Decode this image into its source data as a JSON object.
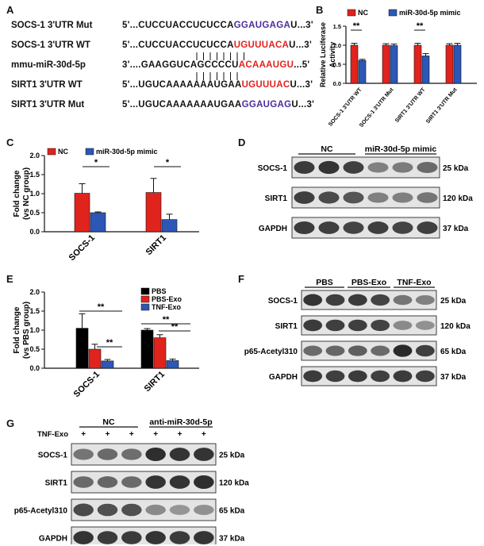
{
  "panels": {
    "A": "A",
    "B": "B",
    "C": "C",
    "D": "D",
    "E": "E",
    "F": "F",
    "G": "G"
  },
  "panel_a": {
    "rows": [
      {
        "label": "SOCS-1 3'UTR Mut",
        "pre": "5'...CUCCUACCUCUCCA",
        "hl": "GGAUGAGA",
        "post": "U...3'",
        "hl_color": "blue"
      },
      {
        "label": "SOCS-1 3'UTR WT",
        "pre": "5'...CUCCUACCUCUCCA",
        "hl": "UGUUUACA",
        "post": "U...3'",
        "hl_color": "red"
      },
      {
        "label": "mmu-miR-30d-5p",
        "pre": "3'....GAAGGUCAGCCCCU",
        "hl": "ACAAAUGU",
        "post": "...5'",
        "hl_color": "red"
      },
      {
        "label": "SIRT1 3'UTR WT",
        "pre": "5'...UGUCAAAAAAAUGAA",
        "hl": "UGUUUAC",
        "post": "U...3'",
        "hl_color": "red"
      },
      {
        "label": "SIRT1 3'UTR Mut",
        "pre": "5'...UGUCAAAAAAAUGAA",
        "hl": "GGAUGAG",
        "post": "U...3'",
        "hl_color": "blue"
      }
    ]
  },
  "colors": {
    "black": "#000000",
    "red": "#e1231e",
    "blue": "#2c57b7"
  },
  "chart_data": [
    {
      "panel": "B",
      "type": "bar",
      "categories": [
        "SOCS-1 3'UTR WT",
        "SOCS-1 3'UTR Mut",
        "SIRT1 3'UTR WT",
        "SIRT1 3'UTR Mut"
      ],
      "series": [
        {
          "name": "NC",
          "values": [
            1.0,
            1.0,
            1.0,
            1.0
          ],
          "errors": [
            0.05,
            0.04,
            0.05,
            0.04
          ]
        },
        {
          "name": "miR-30d-5p mimic",
          "values": [
            0.6,
            0.99,
            0.72,
            1.0
          ],
          "errors": [
            0.03,
            0.04,
            0.06,
            0.05
          ]
        }
      ],
      "ylabel": "Relative Luciferase Activity",
      "ylim": [
        0,
        1.5
      ],
      "yticks": [
        "0.0",
        "0.5",
        "1.0",
        "1.5"
      ],
      "sig": [
        "**",
        "**"
      ]
    },
    {
      "panel": "C",
      "type": "bar",
      "categories": [
        "SOCS-1",
        "SIRT1"
      ],
      "series": [
        {
          "name": "NC",
          "values": [
            1.01,
            1.03
          ],
          "errors": [
            0.25,
            0.37
          ]
        },
        {
          "name": "miR-30d-5p mimic",
          "values": [
            0.5,
            0.32
          ],
          "errors": [
            0.02,
            0.14
          ]
        }
      ],
      "ylabel": "Fold change (vs NC group)",
      "ylim": [
        0,
        2.0
      ],
      "yticks": [
        "0.0",
        "0.5",
        "1.0",
        "1.5",
        "2.0"
      ],
      "sig": [
        "*",
        "*"
      ]
    },
    {
      "panel": "E",
      "type": "bar",
      "categories": [
        "SOCS-1",
        "SIRT1"
      ],
      "series": [
        {
          "name": "PBS",
          "values": [
            1.05,
            1.0
          ],
          "errors": [
            0.38,
            0.04
          ]
        },
        {
          "name": "PBS-Exo",
          "values": [
            0.5,
            0.8
          ],
          "errors": [
            0.13,
            0.08
          ]
        },
        {
          "name": "TNF-Exo",
          "values": [
            0.19,
            0.2
          ],
          "errors": [
            0.04,
            0.04
          ]
        }
      ],
      "ylabel": "Fold change (vs PBS group)",
      "ylim": [
        0,
        2.0
      ],
      "yticks": [
        "0.0",
        "0.5",
        "1.0",
        "1.5",
        "2.0"
      ],
      "sig": [
        "**",
        "**",
        "**",
        "**"
      ]
    }
  ],
  "blot_d": {
    "groups": [
      "NC",
      "miR-30d-5p mimic"
    ],
    "rows": [
      {
        "protein": "SOCS-1",
        "kda": "25 kDa",
        "levels": [
          0.82,
          0.85,
          0.8,
          0.5,
          0.52,
          0.6
        ]
      },
      {
        "protein": "SIRT1",
        "kda": "120 kDa",
        "levels": [
          0.8,
          0.75,
          0.7,
          0.5,
          0.5,
          0.55
        ]
      },
      {
        "protein": "GAPDH",
        "kda": "37 kDa",
        "levels": [
          0.82,
          0.8,
          0.78,
          0.8,
          0.78,
          0.8
        ]
      }
    ]
  },
  "blot_f": {
    "groups": [
      "PBS",
      "PBS-Exo",
      "TNF-Exo"
    ],
    "rows": [
      {
        "protein": "SOCS-1",
        "kda": "25 kDa",
        "levels": [
          0.85,
          0.8,
          0.82,
          0.78,
          0.55,
          0.5
        ]
      },
      {
        "protein": "SIRT1",
        "kda": "120 kDa",
        "levels": [
          0.82,
          0.8,
          0.8,
          0.78,
          0.45,
          0.42
        ]
      },
      {
        "protein": "p65-Acetyl310",
        "kda": "65 kDa",
        "levels": [
          0.6,
          0.62,
          0.65,
          0.6,
          0.9,
          0.8
        ]
      },
      {
        "protein": "GAPDH",
        "kda": "37 kDa",
        "levels": [
          0.82,
          0.8,
          0.82,
          0.8,
          0.82,
          0.8
        ]
      }
    ]
  },
  "blot_g": {
    "groups": [
      "NC",
      "anti-miR-30d-5p"
    ],
    "treatment_label": "TNF-Exo",
    "signs": [
      "+",
      "+",
      "+",
      "+",
      "+",
      "+"
    ],
    "rows": [
      {
        "protein": "SOCS-1",
        "kda": "25 kDa",
        "levels": [
          0.55,
          0.6,
          0.58,
          0.88,
          0.85,
          0.85
        ]
      },
      {
        "protein": "SIRT1",
        "kda": "120 kDa",
        "levels": [
          0.6,
          0.62,
          0.6,
          0.85,
          0.85,
          0.88
        ]
      },
      {
        "protein": "p65-Acetyl310",
        "kda": "65 kDa",
        "levels": [
          0.75,
          0.72,
          0.72,
          0.45,
          0.4,
          0.42
        ]
      },
      {
        "protein": "GAPDH",
        "kda": "37 kDa",
        "levels": [
          0.85,
          0.82,
          0.82,
          0.85,
          0.82,
          0.85
        ]
      }
    ]
  }
}
